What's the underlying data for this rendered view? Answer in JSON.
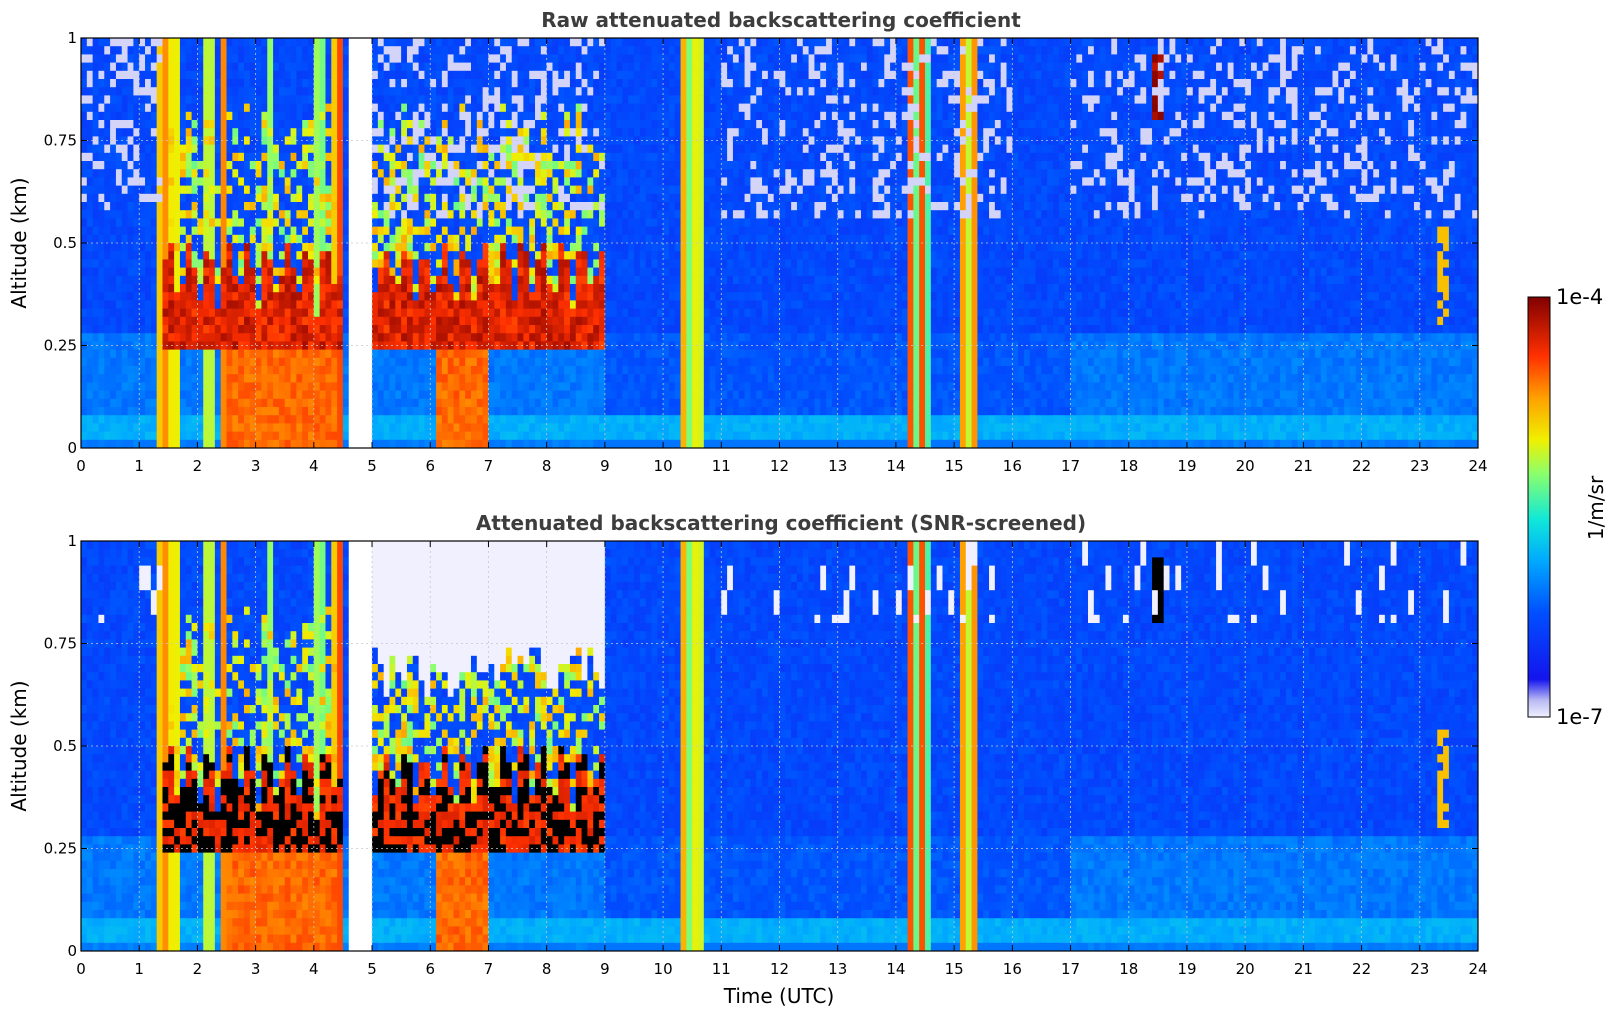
{
  "chart_data": [
    {
      "type": "heatmap",
      "title": "Raw attenuated backscattering coefficient",
      "xlabel": "",
      "ylabel": "Altitude (km)",
      "xlim": [
        0,
        24
      ],
      "ylim": [
        0,
        1
      ],
      "xticks": [
        "0",
        "1",
        "2",
        "3",
        "4",
        "5",
        "6",
        "7",
        "8",
        "9",
        "10",
        "11",
        "12",
        "13",
        "14",
        "15",
        "16",
        "17",
        "18",
        "19",
        "20",
        "21",
        "22",
        "23",
        "24"
      ],
      "yticks": [
        "0",
        "0.25",
        "0.5",
        "0.75",
        "1"
      ],
      "yticks_values": [
        0,
        0.25,
        0.5,
        0.75,
        1
      ],
      "grid": true,
      "screened": false
    },
    {
      "type": "heatmap",
      "title": "Attenuated backscattering coefficient (SNR-screened)",
      "xlabel": "Time (UTC)",
      "ylabel": "Altitude (km)",
      "xlim": [
        0,
        24
      ],
      "ylim": [
        0,
        1
      ],
      "xticks": [
        "0",
        "1",
        "2",
        "3",
        "4",
        "5",
        "6",
        "7",
        "8",
        "9",
        "10",
        "11",
        "12",
        "13",
        "14",
        "15",
        "16",
        "17",
        "18",
        "19",
        "20",
        "21",
        "22",
        "23",
        "24"
      ],
      "yticks": [
        "0",
        "0.25",
        "0.5",
        "0.75",
        "1"
      ],
      "yticks_values": [
        0,
        0.25,
        0.5,
        0.75,
        1
      ],
      "grid": true,
      "screened": true
    }
  ],
  "colorbar": {
    "label": "1/m/sr",
    "max_label": "1e-4",
    "min_label": "1e-7",
    "scale": "log",
    "colormap": "jet"
  },
  "features": {
    "fog_blocks": [
      [
        2.55,
        4.55
      ],
      [
        6.1,
        7.0
      ]
    ],
    "cloud_layers": [
      [
        1.4,
        4.5
      ],
      [
        5.05,
        9.05
      ]
    ],
    "data_gap": [
      4.62,
      5.05
    ],
    "rain_spikes": [
      1.35,
      1.5,
      1.65,
      2.2,
      2.45,
      3.25,
      4.1,
      4.4,
      10.35,
      10.5,
      10.65,
      14.25,
      14.4,
      14.55,
      15.15,
      15.3
    ],
    "upper_cloud": {
      "t": 18.5,
      "z": [
        0.8,
        0.97
      ]
    },
    "late_cloud": {
      "t": 23.4,
      "z": [
        0.3,
        0.55
      ]
    }
  }
}
